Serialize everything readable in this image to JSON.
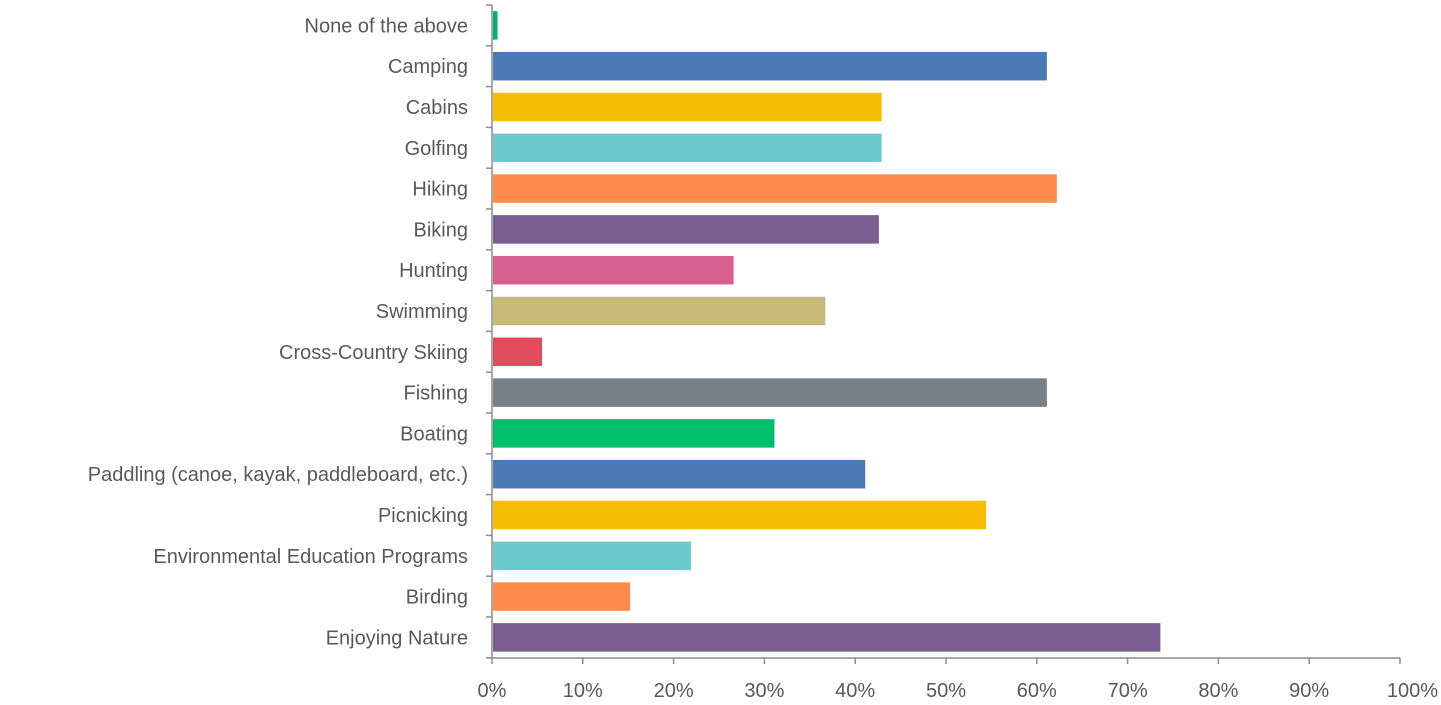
{
  "chart_data": {
    "type": "bar",
    "orientation": "horizontal",
    "categories": [
      "None of the above",
      "Camping",
      "Cabins",
      "Golfing",
      "Hiking",
      "Biking",
      "Hunting",
      "Swimming",
      "Cross-Country Skiing",
      "Fishing",
      "Boating",
      "Paddling (canoe, kayak, paddleboard, etc.)",
      "Picnicking",
      "Environmental Education Programs",
      "Birding",
      "Enjoying Nature"
    ],
    "values": [
      0.5,
      61,
      42.8,
      42.8,
      62.1,
      42.5,
      26.5,
      36.6,
      5.4,
      61,
      31,
      41,
      54.3,
      21.8,
      15.1,
      73.5
    ],
    "colors": [
      "#00b36b",
      "#4a7ab5",
      "#f7bd00",
      "#6cc9cc",
      "#ff8b4c",
      "#7b5d8f",
      "#d65f8f",
      "#c8b87a",
      "#e04c5c",
      "#787f85",
      "#00bf6c",
      "#4a7ab5",
      "#f7bd00",
      "#6cc9cc",
      "#ff8b4c",
      "#7b5d8f"
    ],
    "xlim": [
      0,
      100
    ],
    "x_ticks": [
      "0%",
      "10%",
      "20%",
      "30%",
      "40%",
      "50%",
      "60%",
      "70%",
      "80%",
      "90%",
      "100%"
    ],
    "title": "",
    "xlabel": "",
    "ylabel": "",
    "grid": false,
    "legend": "none"
  }
}
